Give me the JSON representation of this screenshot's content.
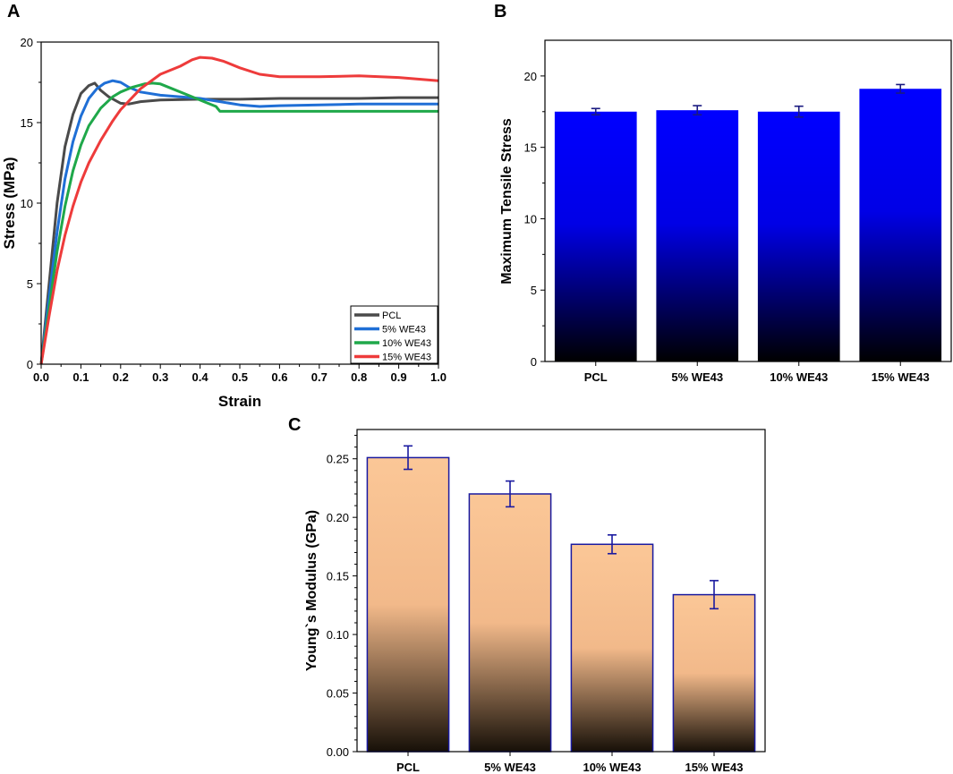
{
  "chart_data": [
    {
      "panel": "A",
      "type": "line",
      "title": "",
      "xlabel": "Strain",
      "ylabel": "Stress (MPa)",
      "xlim": [
        0,
        1.0
      ],
      "ylim": [
        0,
        20
      ],
      "xticks": [
        "0.0",
        "0.1",
        "0.2",
        "0.3",
        "0.4",
        "0.5",
        "0.6",
        "0.7",
        "0.8",
        "0.9",
        "1.0"
      ],
      "yticks": [
        "0",
        "5",
        "10",
        "15",
        "20"
      ],
      "legend_position": "bottom-right",
      "series": [
        {
          "name": "PCL",
          "color": "#4a4a4a",
          "points": [
            [
              0,
              0
            ],
            [
              0.02,
              5
            ],
            [
              0.04,
              10
            ],
            [
              0.06,
              13.5
            ],
            [
              0.08,
              15.5
            ],
            [
              0.1,
              16.8
            ],
            [
              0.12,
              17.3
            ],
            [
              0.135,
              17.45
            ],
            [
              0.15,
              17.0
            ],
            [
              0.17,
              16.6
            ],
            [
              0.2,
              16.2
            ],
            [
              0.22,
              16.15
            ],
            [
              0.25,
              16.3
            ],
            [
              0.3,
              16.4
            ],
            [
              0.4,
              16.45
            ],
            [
              0.5,
              16.45
            ],
            [
              0.6,
              16.5
            ],
            [
              0.7,
              16.5
            ],
            [
              0.8,
              16.5
            ],
            [
              0.9,
              16.55
            ],
            [
              1.0,
              16.55
            ]
          ]
        },
        {
          "name": "5% WE43",
          "color": "#1f6fd6",
          "points": [
            [
              0,
              0
            ],
            [
              0.02,
              4.2
            ],
            [
              0.04,
              8.2
            ],
            [
              0.06,
              11.5
            ],
            [
              0.08,
              13.8
            ],
            [
              0.1,
              15.4
            ],
            [
              0.12,
              16.5
            ],
            [
              0.14,
              17.1
            ],
            [
              0.16,
              17.45
            ],
            [
              0.18,
              17.6
            ],
            [
              0.2,
              17.5
            ],
            [
              0.22,
              17.2
            ],
            [
              0.25,
              16.9
            ],
            [
              0.3,
              16.7
            ],
            [
              0.4,
              16.5
            ],
            [
              0.5,
              16.1
            ],
            [
              0.55,
              16.0
            ],
            [
              0.6,
              16.05
            ],
            [
              0.7,
              16.1
            ],
            [
              0.8,
              16.15
            ],
            [
              0.9,
              16.15
            ],
            [
              1.0,
              16.15
            ]
          ]
        },
        {
          "name": "10% WE43",
          "color": "#1fa84a",
          "points": [
            [
              0,
              0
            ],
            [
              0.02,
              3.5
            ],
            [
              0.04,
              7
            ],
            [
              0.06,
              9.8
            ],
            [
              0.08,
              12
            ],
            [
              0.1,
              13.6
            ],
            [
              0.12,
              14.8
            ],
            [
              0.15,
              15.9
            ],
            [
              0.18,
              16.6
            ],
            [
              0.2,
              16.9
            ],
            [
              0.23,
              17.2
            ],
            [
              0.26,
              17.4
            ],
            [
              0.28,
              17.45
            ],
            [
              0.3,
              17.4
            ],
            [
              0.33,
              17.1
            ],
            [
              0.37,
              16.7
            ],
            [
              0.41,
              16.3
            ],
            [
              0.44,
              16.0
            ],
            [
              0.45,
              15.7
            ],
            [
              0.5,
              15.7
            ],
            [
              0.6,
              15.7
            ],
            [
              0.7,
              15.7
            ],
            [
              0.8,
              15.7
            ],
            [
              0.9,
              15.7
            ],
            [
              1.0,
              15.7
            ]
          ]
        },
        {
          "name": "15% WE43",
          "color": "#ee3b3b",
          "points": [
            [
              0,
              0
            ],
            [
              0.02,
              3
            ],
            [
              0.04,
              5.8
            ],
            [
              0.06,
              8
            ],
            [
              0.08,
              9.8
            ],
            [
              0.1,
              11.3
            ],
            [
              0.12,
              12.5
            ],
            [
              0.15,
              13.9
            ],
            [
              0.18,
              15.1
            ],
            [
              0.2,
              15.8
            ],
            [
              0.25,
              17.1
            ],
            [
              0.3,
              18.0
            ],
            [
              0.35,
              18.5
            ],
            [
              0.38,
              18.9
            ],
            [
              0.4,
              19.05
            ],
            [
              0.43,
              19.0
            ],
            [
              0.46,
              18.8
            ],
            [
              0.5,
              18.4
            ],
            [
              0.55,
              18.0
            ],
            [
              0.6,
              17.85
            ],
            [
              0.7,
              17.85
            ],
            [
              0.8,
              17.9
            ],
            [
              0.9,
              17.8
            ],
            [
              1.0,
              17.6
            ]
          ]
        }
      ]
    },
    {
      "panel": "B",
      "type": "bar",
      "title": "",
      "xlabel": "",
      "ylabel": "Maximum Tensile Stress",
      "ylim": [
        0,
        22.5
      ],
      "yticks": [
        "0",
        "5",
        "10",
        "15",
        "20"
      ],
      "categories": [
        "PCL",
        "5% WE43",
        "10% WE43",
        "15% WE43"
      ],
      "values": [
        17.5,
        17.6,
        17.5,
        19.1
      ],
      "errors": [
        0.22,
        0.32,
        0.38,
        0.3
      ],
      "bar_color_top": "#0000ff",
      "bar_color_bottom": "#000000",
      "error_color": "#1a1a80"
    },
    {
      "panel": "C",
      "type": "bar",
      "title": "",
      "xlabel": "",
      "ylabel": "Young`s Modulus (GPa)",
      "ylim": [
        0,
        0.275
      ],
      "yticks": [
        "0.00",
        "0.05",
        "0.10",
        "0.15",
        "0.20",
        "0.25"
      ],
      "categories": [
        "PCL",
        "5% WE43",
        "10% WE43",
        "15% WE43"
      ],
      "values": [
        0.251,
        0.22,
        0.177,
        0.134
      ],
      "errors": [
        0.01,
        0.011,
        0.008,
        0.012
      ],
      "bar_color_top": "#fbc797",
      "bar_color_bottom": "#171008",
      "bar_border": "#1a1aa0",
      "error_color": "#1a1aa0"
    }
  ],
  "panels": {
    "a_label": "A",
    "b_label": "B",
    "c_label": "C"
  }
}
